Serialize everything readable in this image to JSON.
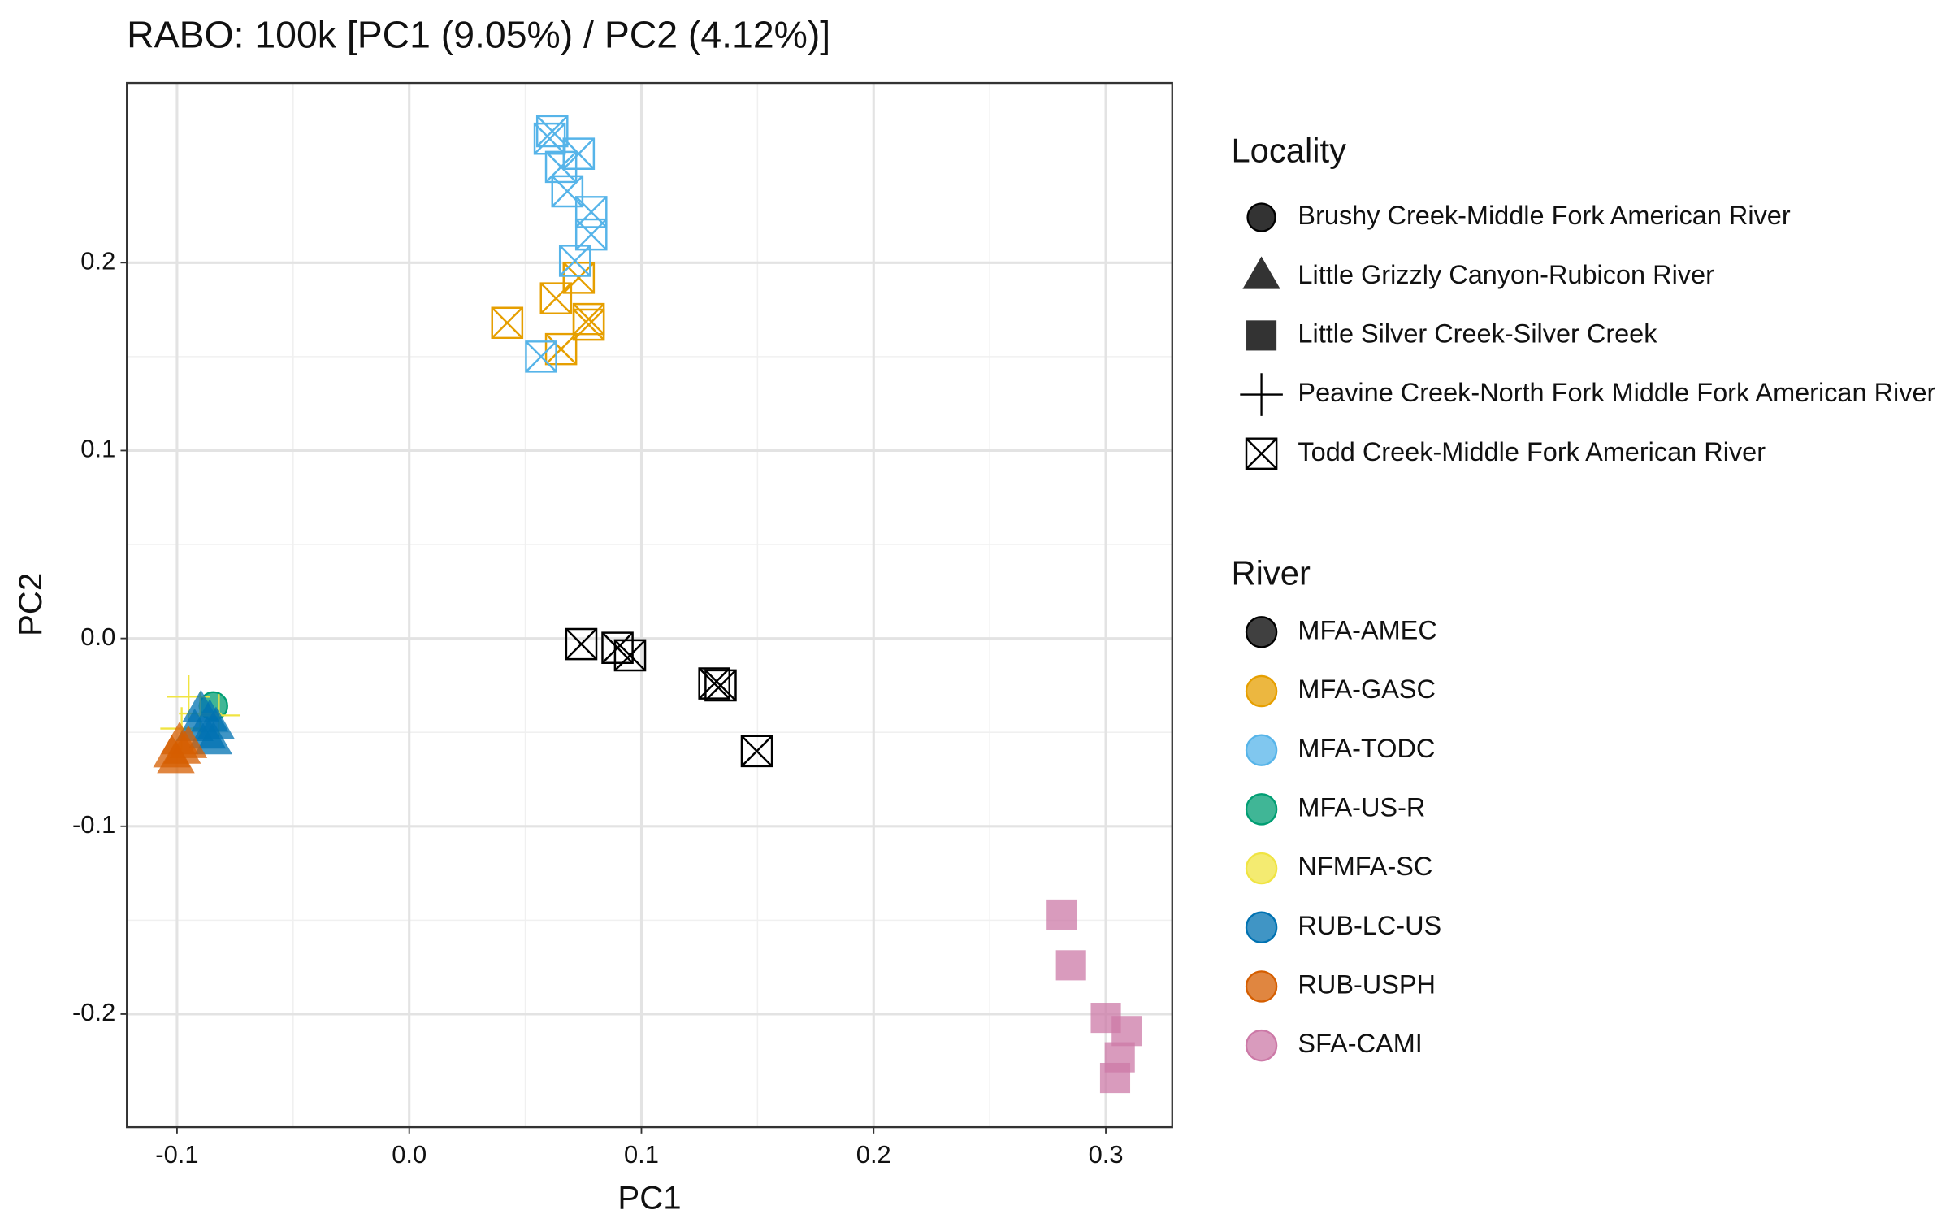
{
  "chart_data": {
    "type": "scatter",
    "title": "RABO: 100k [PC1 (9.05%) / PC2 (4.12%)]",
    "xlabel": "PC1",
    "ylabel": "PC2",
    "xlim": [
      -0.1216,
      0.3286
    ],
    "ylim": [
      -0.2602,
      0.2957
    ],
    "xticks": [
      -0.1,
      {
        "value": 0,
        "label": "0.0"
      },
      0.1,
      0.2,
      0.3
    ],
    "yticks": [
      -0.2,
      -0.1,
      {
        "value": 0,
        "label": "0.0"
      },
      0.1,
      0.2
    ],
    "grid": true,
    "legends": [
      {
        "title": "Locality",
        "entries": [
          {
            "label": "Brushy Creek-Middle Fork American River",
            "shape": "circle"
          },
          {
            "label": "Little Grizzly Canyon-Rubicon River",
            "shape": "triangle"
          },
          {
            "label": "Little Silver Creek-Silver Creek",
            "shape": "square"
          },
          {
            "label": "Peavine Creek-North Fork Middle Fork American River",
            "shape": "plus"
          },
          {
            "label": "Todd Creek-Middle Fork American River",
            "shape": "crossed-square"
          }
        ]
      },
      {
        "title": "River"
      }
    ],
    "series": [
      {
        "name": "MFA-AMEC",
        "color": "#000000",
        "shape": "crossed-square",
        "x": [
          0.0741,
          0.0897,
          0.0951,
          0.1314,
          0.1341,
          0.1497
        ],
        "y": [
          -0.003,
          -0.005,
          -0.009,
          -0.024,
          -0.025,
          -0.06
        ]
      },
      {
        "name": "MFA-GASC",
        "color": "#E69F00",
        "shape": "crossed-square",
        "x": [
          0.0422,
          0.0632,
          0.073,
          0.0773,
          0.0773,
          0.0654
        ],
        "y": [
          0.168,
          0.181,
          0.192,
          0.17,
          0.167,
          0.154
        ]
      },
      {
        "name": "MFA-TODC",
        "color": "#56B4E9",
        "shape": "crossed-square",
        "x": [
          0.0616,
          0.0605,
          0.073,
          0.0654,
          0.0681,
          0.0784,
          0.0784,
          0.0714,
          0.0568
        ],
        "y": [
          0.27,
          0.266,
          0.258,
          0.251,
          0.238,
          0.227,
          0.215,
          0.201,
          0.15
        ]
      },
      {
        "name": "MFA-US-R",
        "color": "#009E73",
        "shape": "circle",
        "x": [
          -0.0843
        ],
        "y": [
          -0.036
        ]
      },
      {
        "name": "NFMFA-SC",
        "color": "#F0E442",
        "shape": "plus",
        "x": [
          -0.095,
          -0.09,
          -0.082,
          -0.098
        ],
        "y": [
          -0.031,
          -0.04,
          -0.041,
          -0.048
        ]
      },
      {
        "name": "RUB-LC-US",
        "color": "#0072B2",
        "shape": "triangle",
        "x": [
          -0.0897,
          -0.0859,
          -0.0832,
          -0.087,
          -0.0924,
          -0.0843
        ],
        "y": [
          -0.038,
          -0.043,
          -0.047,
          -0.052,
          -0.048,
          -0.055
        ]
      },
      {
        "name": "RUB-USPH",
        "color": "#D55E00",
        "shape": "triangle",
        "x": [
          -0.1005,
          -0.0978,
          -0.0951,
          -0.1022,
          -0.0989
        ],
        "y": [
          -0.065,
          -0.06,
          -0.057,
          -0.062,
          -0.055
        ]
      },
      {
        "name": "SFA-CAMI",
        "color": "#CC79A7",
        "shape": "square",
        "x": [
          0.281,
          0.285,
          0.3,
          0.309,
          0.306,
          0.304
        ],
        "y": [
          -0.147,
          -0.174,
          -0.202,
          -0.209,
          -0.223,
          -0.234
        ]
      }
    ]
  }
}
